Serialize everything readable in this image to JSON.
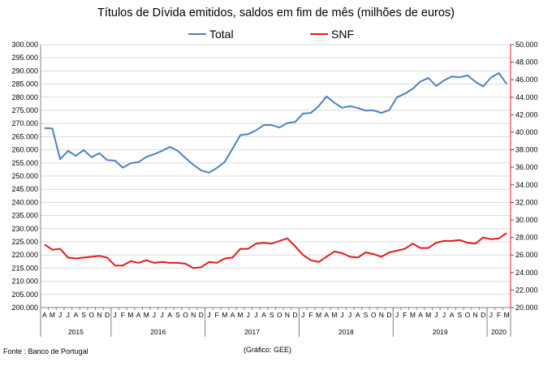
{
  "chart_data": {
    "type": "line",
    "title": "Títulos de Dívida emitidos, saldos em fim de mês  (milhões de euros)",
    "x": [
      "A",
      "M",
      "J",
      "J",
      "A",
      "S",
      "O",
      "N",
      "D",
      "J",
      "F",
      "M",
      "A",
      "M",
      "J",
      "J",
      "A",
      "S",
      "O",
      "N",
      "D",
      "J",
      "F",
      "M",
      "A",
      "M",
      "J",
      "J",
      "A",
      "S",
      "O",
      "N",
      "D",
      "J",
      "F",
      "M",
      "A",
      "M",
      "J",
      "J",
      "A",
      "S",
      "O",
      "N",
      "D",
      "J",
      "F",
      "M",
      "A",
      "M",
      "J",
      "J",
      "A",
      "S",
      "O",
      "N",
      "D",
      "J",
      "F",
      "M"
    ],
    "year_groups": [
      {
        "label": "2015",
        "count": 9
      },
      {
        "label": "2016",
        "count": 12
      },
      {
        "label": "2017",
        "count": 12
      },
      {
        "label": "2018",
        "count": 12
      },
      {
        "label": "2019",
        "count": 12
      },
      {
        "label": "2020",
        "count": 3
      }
    ],
    "series": [
      {
        "name": "Total",
        "axis": "left",
        "color": "#4F81BD",
        "values": [
          268.3,
          268.1,
          256.4,
          259.6,
          257.7,
          259.9,
          257.2,
          258.7,
          256.1,
          255.9,
          253.2,
          254.9,
          255.3,
          257.3,
          258.3,
          259.6,
          261.1,
          259.6,
          256.9,
          254.3,
          252.2,
          251.3,
          253.1,
          255.4,
          260.4,
          265.6,
          266.0,
          267.4,
          269.4,
          269.4,
          268.5,
          270.2,
          270.6,
          273.8,
          274.0,
          276.6,
          280.3,
          277.9,
          276.0,
          276.6,
          275.9,
          274.9,
          275.0,
          274.0,
          275.1,
          280.0,
          281.3,
          283.2,
          286.0,
          287.3,
          284.3,
          286.4,
          287.9,
          287.6,
          288.3,
          285.9,
          284.1,
          287.5,
          289.2,
          285.0
        ]
      },
      {
        "name": "SNF",
        "axis": "right",
        "color": "#E31A1C",
        "values": [
          27.2,
          26.6,
          26.7,
          25.7,
          25.6,
          25.7,
          25.8,
          25.9,
          25.7,
          24.8,
          24.8,
          25.3,
          25.1,
          25.4,
          25.1,
          25.2,
          25.1,
          25.1,
          25.0,
          24.5,
          24.6,
          25.2,
          25.1,
          25.6,
          25.7,
          26.7,
          26.7,
          27.3,
          27.4,
          27.3,
          27.6,
          27.9,
          27.0,
          26.0,
          25.4,
          25.2,
          25.8,
          26.4,
          26.2,
          25.8,
          25.7,
          26.3,
          26.1,
          25.8,
          26.3,
          26.5,
          26.7,
          27.3,
          26.8,
          26.8,
          27.4,
          27.6,
          27.6,
          27.7,
          27.4,
          27.3,
          28.0,
          27.8,
          27.9,
          28.5
        ]
      }
    ],
    "y_left": {
      "min": 200.0,
      "max": 300.0,
      "step": 5.0,
      "ticks": [
        "200.000",
        "205.000",
        "210.000",
        "215.000",
        "220.000",
        "225.000",
        "230.000",
        "235.000",
        "240.000",
        "245.000",
        "250.000",
        "255.000",
        "260.000",
        "265.000",
        "270.000",
        "275.000",
        "280.000",
        "285.000",
        "290.000",
        "295.000",
        "300.000"
      ]
    },
    "y_right": {
      "min": 20.0,
      "max": 50.0,
      "step": 2.0,
      "ticks": [
        "20.000",
        "22.000",
        "24.000",
        "26.000",
        "28.000",
        "30.000",
        "32.000",
        "34.000",
        "36.000",
        "38.000",
        "40.000",
        "42.000",
        "44.000",
        "46.000",
        "48.000",
        "50.000"
      ]
    },
    "grid": true,
    "legend_position": "top-center"
  },
  "footer": {
    "source": "Fonte : Banco de Portugal",
    "credit": "(Gráfico: GEE)"
  }
}
